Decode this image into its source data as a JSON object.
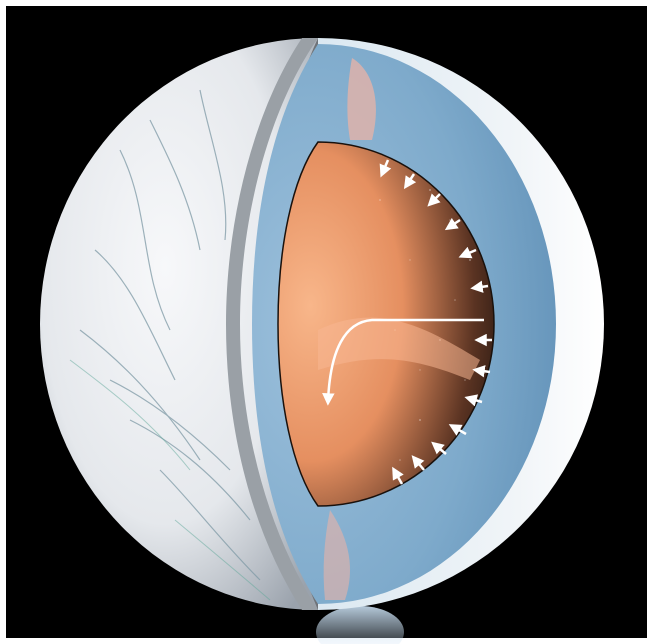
{
  "image": {
    "background_color": "#000000",
    "frame_color": "#ffffff",
    "subject": "enceladus-cutaway",
    "colors": {
      "surface": "#e9ebee",
      "ice_shell": "#d9e6ef",
      "ocean": "#6f9dc2",
      "core_warm": "#f4a57c",
      "core_dark": "#2a1a12",
      "arrow": "#ffffff",
      "plume": "#b8d4ee"
    },
    "layers": [
      "surface",
      "ice-shell",
      "ocean",
      "rocky-core"
    ]
  }
}
